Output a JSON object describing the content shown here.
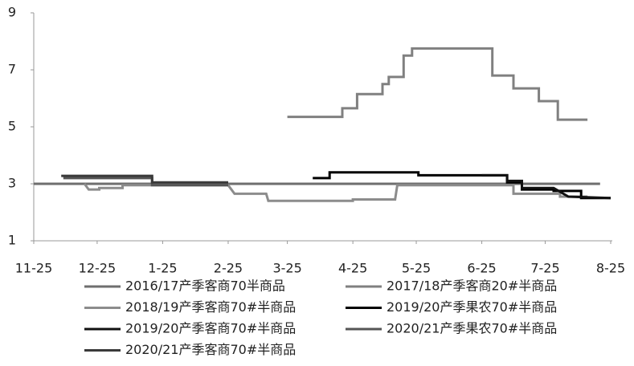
{
  "chart_data": {
    "type": "line",
    "xlim": [
      "11-25",
      "8-25"
    ],
    "xticks": [
      "11-25",
      "12-25",
      "1-25",
      "2-25",
      "3-25",
      "4-25",
      "5-25",
      "6-25",
      "7-25",
      "8-25"
    ],
    "ylim": [
      1,
      9
    ],
    "yticks": [
      1,
      3,
      5,
      7,
      9
    ],
    "grid": false,
    "series": [
      {
        "name": "2016/17产季客商70半商品",
        "color": "#6e6e6e",
        "x": [
          "11-25",
          "8-20"
        ],
        "values": [
          3,
          3
        ]
      },
      {
        "name": "2017/18产季客商20#半商品",
        "color": "#808080",
        "x": [
          "3-25",
          "4-20",
          "4-20",
          "4-27",
          "4-27",
          "5-09",
          "5-09",
          "5-12",
          "5-12",
          "5-19",
          "5-19",
          "5-23",
          "5-23",
          "6-30",
          "6-30",
          "7-10",
          "7-10",
          "7-22",
          "7-22",
          "7-31",
          "7-31",
          "8-14"
        ],
        "values": [
          5.35,
          5.35,
          5.65,
          5.65,
          6.15,
          6.15,
          6.5,
          6.5,
          6.75,
          6.75,
          7.5,
          7.5,
          7.75,
          7.75,
          6.8,
          6.8,
          6.35,
          6.35,
          5.9,
          5.9,
          5.25,
          5.25
        ]
      },
      {
        "name": "2018/19产季客商70#半商品",
        "color": "#8c8c8c",
        "x": [
          "12-19",
          "12-21",
          "12-26",
          "12-26",
          "1-06",
          "1-06",
          "2-25",
          "2-28",
          "3-15",
          "3-16",
          "4-25",
          "4-25",
          "5-15",
          "5-16",
          "7-10",
          "7-10",
          "8-01",
          "8-01",
          "8-14"
        ],
        "values": [
          3.0,
          2.8,
          2.8,
          2.85,
          2.85,
          2.95,
          2.95,
          2.65,
          2.65,
          2.4,
          2.4,
          2.45,
          2.45,
          2.95,
          2.95,
          2.65,
          2.65,
          2.55,
          2.55
        ]
      },
      {
        "name": "2019/20产季果农70#半商品",
        "color": "#000000",
        "x": [
          "4-06",
          "4-14",
          "4-14",
          "5-26",
          "5-26",
          "7-07",
          "7-07",
          "7-14",
          "7-14",
          "7-29",
          "7-29",
          "8-11",
          "8-11",
          "8-25"
        ],
        "values": [
          3.2,
          3.2,
          3.4,
          3.4,
          3.3,
          3.3,
          3.05,
          3.05,
          2.8,
          2.8,
          2.75,
          2.75,
          2.5,
          2.5
        ]
      },
      {
        "name": "2019/20产季客商70#半商品",
        "color": "#111111",
        "x": [
          "6-25",
          "7-07",
          "7-07",
          "7-14",
          "7-14",
          "7-29",
          "8-05",
          "8-25"
        ],
        "values": [
          3.3,
          3.3,
          3.1,
          3.1,
          2.85,
          2.85,
          2.55,
          2.5
        ]
      },
      {
        "name": "2020/21产季果农70#半商品",
        "color": "#555555",
        "x": [
          "12-09",
          "1-20",
          "1-20",
          "2-25"
        ],
        "values": [
          3.2,
          3.2,
          2.95,
          2.95
        ]
      },
      {
        "name": "2020/21产季客商70#半商品",
        "color": "#3a3a3a",
        "x": [
          "12-08",
          "1-20",
          "1-20",
          "2-25"
        ],
        "values": [
          3.28,
          3.28,
          3.05,
          3.05
        ]
      }
    ]
  }
}
